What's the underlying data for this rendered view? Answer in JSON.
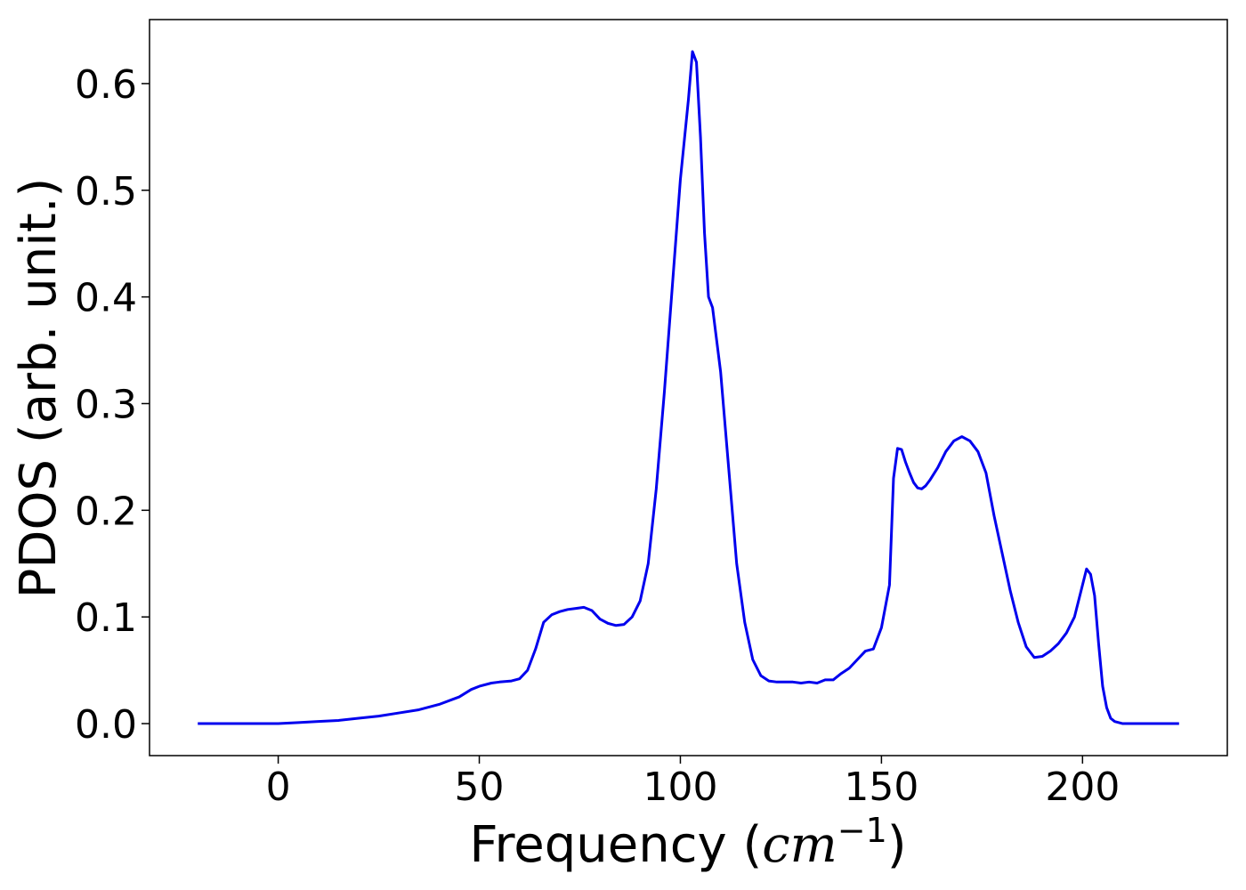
{
  "chart_data": {
    "type": "line",
    "title": "",
    "xlabel": "Frequency (cm⁻¹)",
    "xlabel_prefix": "Frequency (",
    "xlabel_unit": "cm",
    "xlabel_exponent": "−1",
    "xlabel_suffix": ")",
    "ylabel": "PDOS (arb. unit.)",
    "xlim": [
      -32,
      236
    ],
    "ylim": [
      -0.03,
      0.66
    ],
    "xticks": [
      0,
      50,
      100,
      150,
      200
    ],
    "xtick_labels": [
      "0",
      "50",
      "100",
      "150",
      "200"
    ],
    "yticks": [
      0.0,
      0.1,
      0.2,
      0.3,
      0.4,
      0.5,
      0.6
    ],
    "ytick_labels": [
      "0.0",
      "0.1",
      "0.2",
      "0.3",
      "0.4",
      "0.5",
      "0.6"
    ],
    "grid": false,
    "line_color": "#0000ee",
    "series": [
      {
        "x": [
          -20,
          -10,
          0,
          5,
          10,
          15,
          20,
          25,
          30,
          35,
          40,
          45,
          48,
          50,
          53,
          55,
          58,
          60,
          62,
          64,
          66,
          68,
          70,
          72,
          74,
          76,
          78,
          80,
          82,
          84,
          86,
          88,
          90,
          92,
          94,
          96,
          98,
          100,
          102,
          103,
          104,
          105,
          106,
          107,
          108,
          110,
          112,
          114,
          116,
          118,
          120,
          122,
          124,
          126,
          128,
          130,
          132,
          134,
          136,
          138,
          140,
          142,
          144,
          146,
          148,
          150,
          152,
          153,
          154,
          155,
          156,
          157,
          158,
          159,
          160,
          161,
          162,
          164,
          166,
          168,
          170,
          172,
          174,
          176,
          178,
          180,
          182,
          184,
          186,
          188,
          190,
          192,
          194,
          196,
          198,
          200,
          201,
          202,
          203,
          204,
          205,
          206,
          207,
          208,
          210,
          215,
          224
        ],
        "y": [
          0.0,
          0.0,
          0.0,
          0.001,
          0.002,
          0.003,
          0.005,
          0.007,
          0.01,
          0.013,
          0.018,
          0.025,
          0.032,
          0.035,
          0.038,
          0.039,
          0.04,
          0.042,
          0.05,
          0.07,
          0.095,
          0.102,
          0.105,
          0.107,
          0.108,
          0.109,
          0.106,
          0.098,
          0.094,
          0.092,
          0.093,
          0.1,
          0.115,
          0.15,
          0.22,
          0.31,
          0.41,
          0.51,
          0.585,
          0.63,
          0.62,
          0.55,
          0.46,
          0.4,
          0.39,
          0.33,
          0.24,
          0.15,
          0.095,
          0.06,
          0.045,
          0.04,
          0.039,
          0.039,
          0.039,
          0.038,
          0.039,
          0.038,
          0.041,
          0.041,
          0.047,
          0.052,
          0.06,
          0.068,
          0.07,
          0.09,
          0.13,
          0.23,
          0.258,
          0.257,
          0.245,
          0.235,
          0.226,
          0.221,
          0.22,
          0.223,
          0.228,
          0.24,
          0.255,
          0.265,
          0.269,
          0.265,
          0.255,
          0.235,
          0.195,
          0.16,
          0.125,
          0.095,
          0.072,
          0.062,
          0.063,
          0.068,
          0.075,
          0.085,
          0.1,
          0.13,
          0.145,
          0.14,
          0.12,
          0.075,
          0.035,
          0.015,
          0.005,
          0.002,
          0.0,
          0.0,
          0.0
        ]
      }
    ]
  }
}
